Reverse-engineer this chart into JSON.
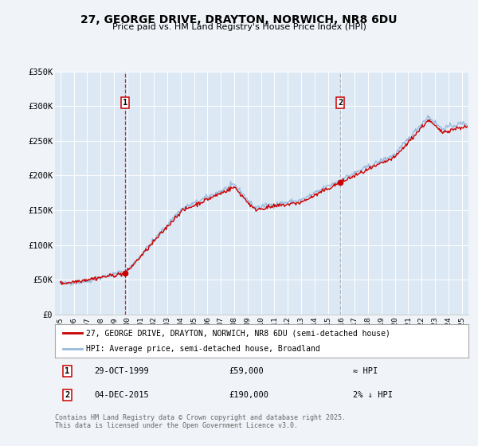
{
  "title": "27, GEORGE DRIVE, DRAYTON, NORWICH, NR8 6DU",
  "subtitle": "Price paid vs. HM Land Registry's House Price Index (HPI)",
  "background_color": "#f0f4f8",
  "plot_bg_color": "#dce8f4",
  "grid_color": "#ffffff",
  "ylim": [
    0,
    350000
  ],
  "yticks": [
    0,
    50000,
    100000,
    150000,
    200000,
    250000,
    300000,
    350000
  ],
  "ytick_labels": [
    "£0",
    "£50K",
    "£100K",
    "£150K",
    "£200K",
    "£250K",
    "£300K",
    "£350K"
  ],
  "xlim_start": 1994.6,
  "xlim_end": 2025.5,
  "xticks": [
    1995,
    1996,
    1997,
    1998,
    1999,
    2000,
    2001,
    2002,
    2003,
    2004,
    2005,
    2006,
    2007,
    2008,
    2009,
    2010,
    2011,
    2012,
    2013,
    2014,
    2015,
    2016,
    2017,
    2018,
    2019,
    2020,
    2021,
    2022,
    2023,
    2024,
    2025
  ],
  "red_line_color": "#cc0000",
  "blue_line_color": "#99bbdd",
  "marker_color": "#cc0000",
  "sale1_x": 1999.83,
  "sale1_y": 59000,
  "sale2_x": 2015.92,
  "sale2_y": 190000,
  "legend_label_red": "27, GEORGE DRIVE, DRAYTON, NORWICH, NR8 6DU (semi-detached house)",
  "legend_label_blue": "HPI: Average price, semi-detached house, Broadland",
  "annotation1_date": "29-OCT-1999",
  "annotation1_price": "£59,000",
  "annotation1_hpi": "≈ HPI",
  "annotation2_date": "04-DEC-2015",
  "annotation2_price": "£190,000",
  "annotation2_hpi": "2% ↓ HPI",
  "footer": "Contains HM Land Registry data © Crown copyright and database right 2025.\nThis data is licensed under the Open Government Licence v3.0."
}
